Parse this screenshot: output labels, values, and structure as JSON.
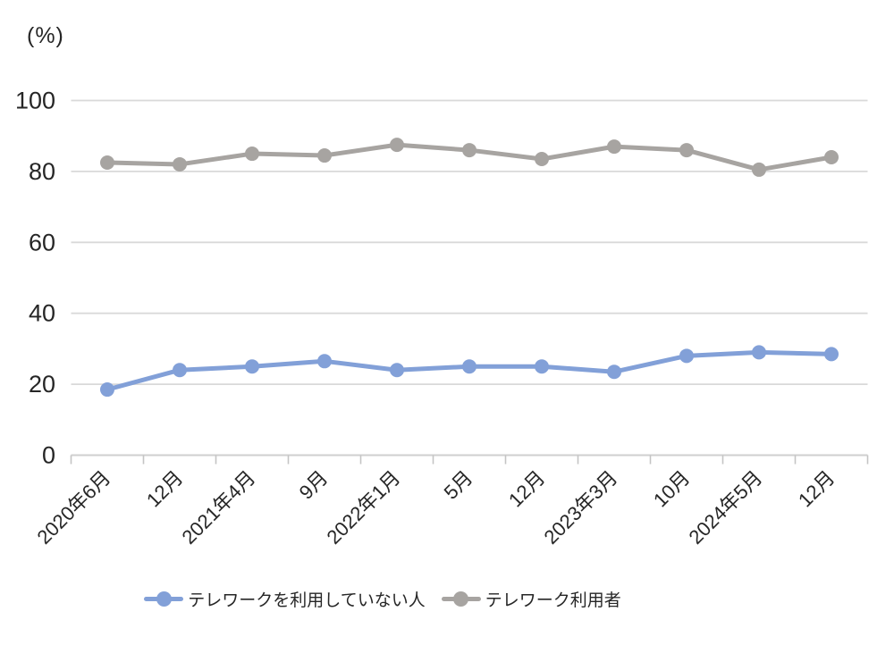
{
  "chart_data": {
    "type": "line",
    "title": "",
    "unit_label": "(%)",
    "categories": [
      "2020年6月",
      "12月",
      "2021年4月",
      "9月",
      "2022年1月",
      "5月",
      "12月",
      "2023年3月",
      "10月",
      "2024年5月",
      "12月"
    ],
    "series": [
      {
        "name": "テレワークを利用していない人",
        "color": "#82A0D8",
        "marker": "circle",
        "values": [
          18.5,
          24,
          25,
          26.5,
          24,
          25,
          25,
          23.5,
          28,
          29,
          28.5
        ]
      },
      {
        "name": "テレワーク利用者",
        "color": "#A7A4A1",
        "marker": "circle",
        "values": [
          82.5,
          82,
          85,
          84.5,
          87.5,
          86,
          83.5,
          87,
          86,
          80.5,
          84
        ]
      }
    ],
    "yticks": [
      0,
      20,
      40,
      60,
      80,
      100
    ],
    "ylim": [
      0,
      100
    ],
    "grid": true,
    "legend_position": "bottom",
    "colors": {
      "grid": "#D9D9D9",
      "axis": "#CFCFCF",
      "tick": "#C4C4C4",
      "text": "#262626",
      "background": "#FFFFFF"
    }
  }
}
